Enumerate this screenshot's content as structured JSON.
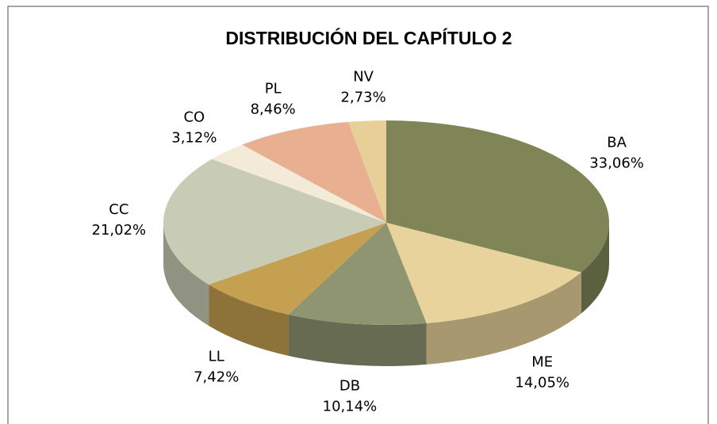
{
  "chart_data": {
    "type": "pie",
    "title": "DISTRIBUCIÓN DEL CAPÍTULO 2",
    "categories": [
      "BA",
      "ME",
      "DB",
      "LL",
      "CC",
      "CO",
      "PL",
      "NV"
    ],
    "values": [
      33.06,
      14.05,
      10.14,
      7.42,
      21.02,
      3.12,
      8.46,
      2.73
    ],
    "value_labels": [
      "33,06%",
      "14,05%",
      "10,14%",
      "7,42%",
      "21,02%",
      "3,12%",
      "8,46%",
      "2,73%"
    ],
    "colors": [
      "#7f8556",
      "#e8d39c",
      "#8f9570",
      "#c4a050",
      "#c9ccb4",
      "#f3ead8",
      "#e8b090",
      "#e8cf98"
    ]
  }
}
